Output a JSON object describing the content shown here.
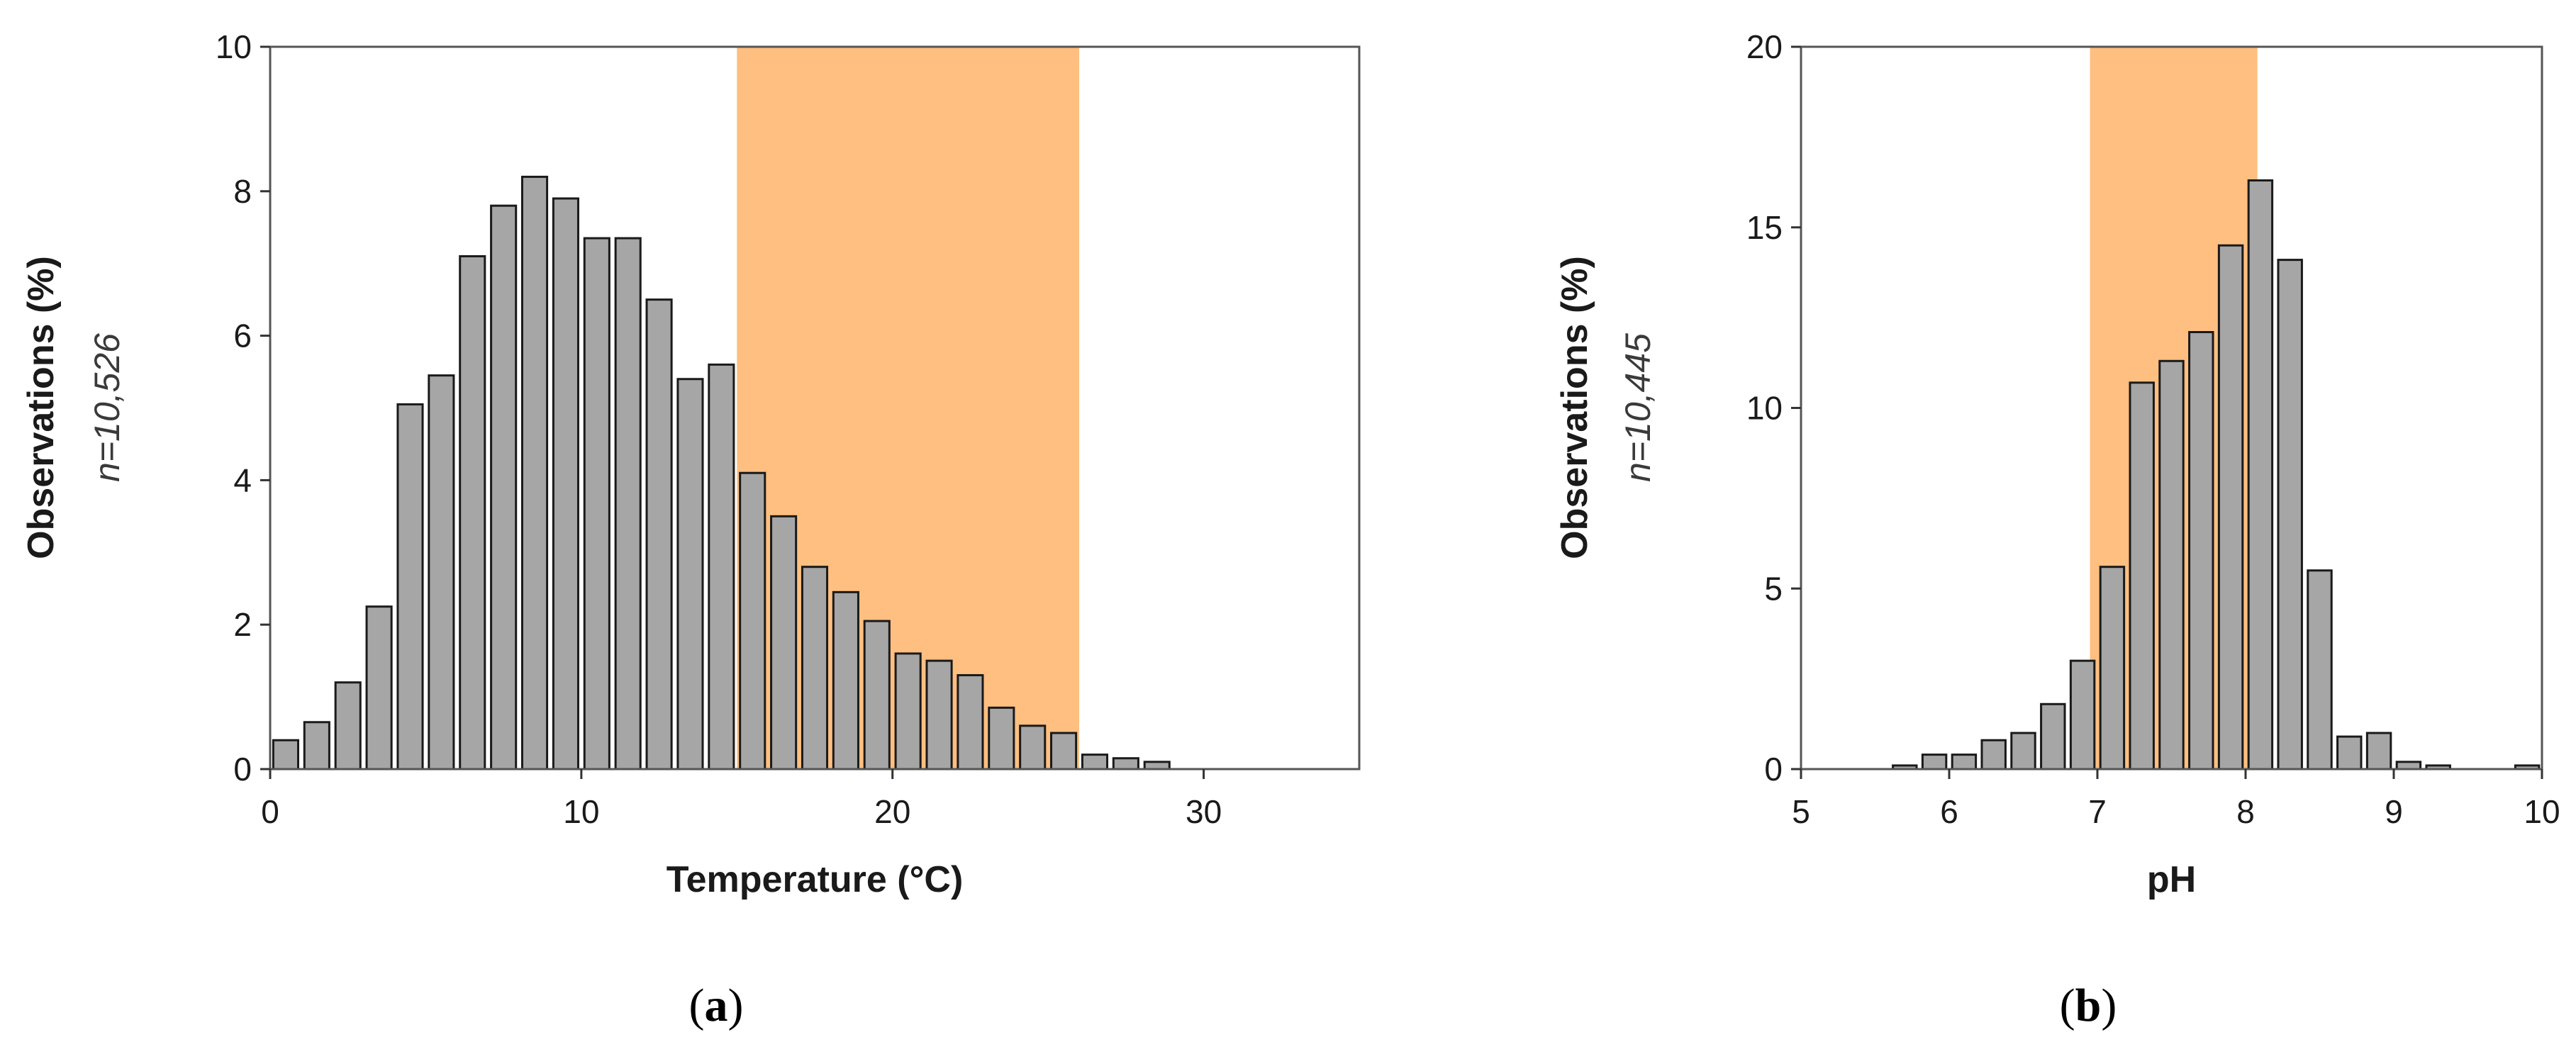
{
  "chart_data": [
    {
      "type": "bar",
      "panel_label": {
        "open": "(",
        "letter": "a",
        "close": ")"
      },
      "xlabel": "Temperature (°C)",
      "ylabel": "Observations (%)",
      "n_label": "n=10,526",
      "xlim": [
        0,
        35
      ],
      "ylim": [
        0,
        10
      ],
      "xticks": [
        0,
        10,
        20,
        30
      ],
      "yticks": [
        0,
        2,
        4,
        6,
        8,
        10
      ],
      "bin_width": 1,
      "highlight_range": [
        15,
        26
      ],
      "highlight_color": "#FFBF80",
      "bar_color": "#A6A6A6",
      "bar_edge_color": "#1a1a1a",
      "x": [
        0.5,
        1.5,
        2.5,
        3.5,
        4.5,
        5.5,
        6.5,
        7.5,
        8.5,
        9.5,
        10.5,
        11.5,
        12.5,
        13.5,
        14.5,
        15.5,
        16.5,
        17.5,
        18.5,
        19.5,
        20.5,
        21.5,
        22.5,
        23.5,
        24.5,
        25.5,
        26.5,
        27.5,
        28.5
      ],
      "values": [
        0.4,
        0.65,
        1.2,
        2.25,
        5.05,
        5.45,
        7.1,
        7.8,
        8.2,
        7.9,
        7.35,
        7.35,
        6.5,
        5.4,
        5.6,
        4.1,
        3.5,
        2.8,
        2.45,
        2.05,
        1.6,
        1.5,
        1.3,
        0.85,
        0.6,
        0.5,
        0.2,
        0.15,
        0.1
      ]
    },
    {
      "type": "bar",
      "panel_label": {
        "open": "(",
        "letter": "b",
        "close": ")"
      },
      "xlabel": "pH",
      "ylabel": "Observations (%)",
      "n_label": "n=10,445",
      "xlim": [
        5,
        10
      ],
      "ylim": [
        0,
        20
      ],
      "xticks": [
        5,
        6,
        7,
        8,
        9,
        10
      ],
      "yticks": [
        0,
        5,
        10,
        15,
        20
      ],
      "bin_width": 0.2,
      "highlight_range": [
        6.95,
        8.08
      ],
      "highlight_color": "#FFBF80",
      "bar_color": "#A6A6A6",
      "bar_edge_color": "#1a1a1a",
      "x": [
        5.7,
        5.9,
        6.1,
        6.3,
        6.5,
        6.7,
        6.9,
        7.1,
        7.3,
        7.5,
        7.7,
        7.9,
        8.1,
        8.3,
        8.5,
        8.7,
        8.9,
        9.1,
        9.3,
        9.9
      ],
      "values": [
        0.1,
        0.4,
        0.4,
        0.8,
        1.0,
        1.8,
        3.0,
        5.6,
        10.7,
        11.3,
        12.1,
        14.5,
        16.3,
        14.1,
        5.5,
        0.9,
        1.0,
        0.2,
        0.1,
        0.1
      ]
    }
  ]
}
